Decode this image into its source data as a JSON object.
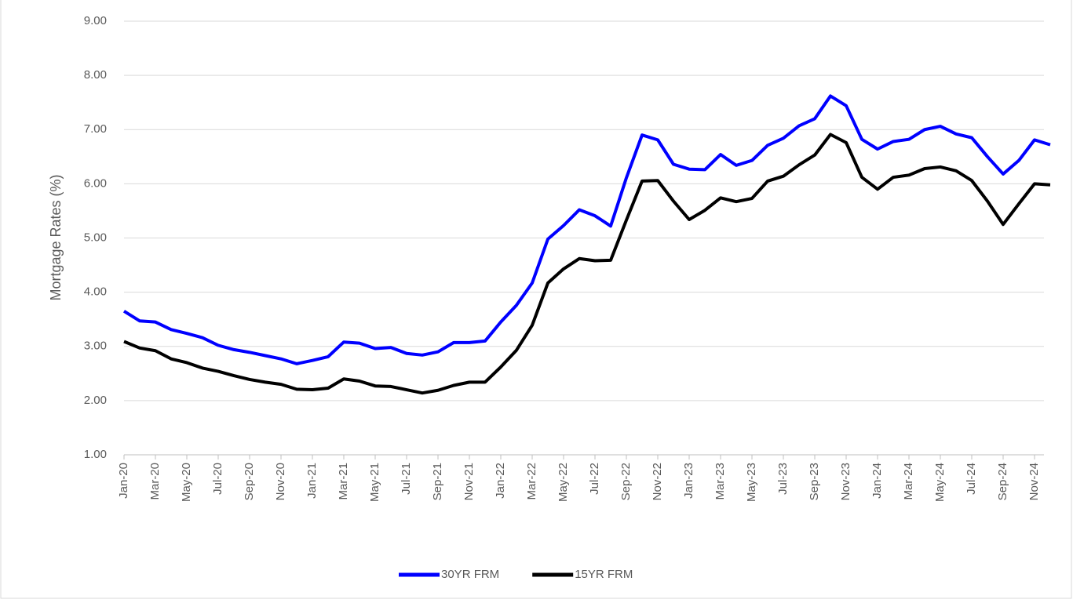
{
  "chart_data": {
    "type": "line",
    "y_label": "Mortgage Rates (%)",
    "categories": [
      "Jan-20",
      null,
      "Mar-20",
      null,
      "May-20",
      null,
      "Jul-20",
      null,
      "Sep-20",
      null,
      "Nov-20",
      null,
      "Jan-21",
      null,
      "Mar-21",
      null,
      "May-21",
      null,
      "Jul-21",
      null,
      "Sep-21",
      null,
      "Nov-21",
      null,
      "Jan-22",
      null,
      "Mar-22",
      null,
      "May-22",
      null,
      "Jul-22",
      null,
      "Sep-22",
      null,
      "Nov-22",
      null,
      "Jan-23",
      null,
      "Mar-23",
      null,
      "May-23",
      null,
      "Jul-23",
      null,
      "Sep-23",
      null,
      "Nov-23",
      null,
      "Jan-24",
      null,
      "Mar-24",
      null,
      "May-24",
      null,
      "Jul-24",
      null,
      "Sep-24",
      null,
      "Nov-24",
      null
    ],
    "series": [
      {
        "name": "30YR FRM",
        "color": "#0000ff",
        "values": [
          3.65,
          3.47,
          3.45,
          3.31,
          3.24,
          3.16,
          3.02,
          2.94,
          2.89,
          2.83,
          2.77,
          2.68,
          2.74,
          2.81,
          3.08,
          3.06,
          2.96,
          2.98,
          2.87,
          2.84,
          2.9,
          3.07,
          3.07,
          3.1,
          3.45,
          3.76,
          4.17,
          4.98,
          5.23,
          5.52,
          5.41,
          5.22,
          6.11,
          6.9,
          6.81,
          6.36,
          6.27,
          6.26,
          6.54,
          6.34,
          6.43,
          6.71,
          6.84,
          7.07,
          7.2,
          7.62,
          7.44,
          6.82,
          6.64,
          6.78,
          6.82,
          7.0,
          7.06,
          6.92,
          6.85,
          6.5,
          6.18,
          6.43,
          6.81,
          6.72
        ]
      },
      {
        "name": "15YR FRM",
        "color": "#000000",
        "values": [
          3.09,
          2.97,
          2.92,
          2.77,
          2.7,
          2.6,
          2.54,
          2.46,
          2.39,
          2.34,
          2.3,
          2.21,
          2.2,
          2.23,
          2.4,
          2.36,
          2.27,
          2.26,
          2.2,
          2.14,
          2.19,
          2.28,
          2.34,
          2.34,
          2.62,
          2.93,
          3.39,
          4.17,
          4.43,
          4.62,
          4.58,
          4.59,
          5.33,
          6.05,
          6.06,
          5.68,
          5.34,
          5.51,
          5.74,
          5.67,
          5.73,
          6.05,
          6.14,
          6.35,
          6.53,
          6.91,
          6.76,
          6.12,
          5.9,
          6.12,
          6.16,
          6.28,
          6.31,
          6.24,
          6.06,
          5.68,
          5.25,
          5.63,
          6.0,
          5.98
        ]
      }
    ],
    "ylim": [
      1,
      9
    ],
    "yticks": [
      {
        "value": 1,
        "label": "1.00"
      },
      {
        "value": 2,
        "label": "2.00"
      },
      {
        "value": 3,
        "label": "3.00"
      },
      {
        "value": 4,
        "label": "4.00"
      },
      {
        "value": 5,
        "label": "5.00"
      },
      {
        "value": 6,
        "label": "6.00"
      },
      {
        "value": 7,
        "label": "7.00"
      },
      {
        "value": 8,
        "label": "8.00"
      },
      {
        "value": 9,
        "label": "9.00"
      }
    ],
    "grid": true,
    "legend": "bottom"
  }
}
